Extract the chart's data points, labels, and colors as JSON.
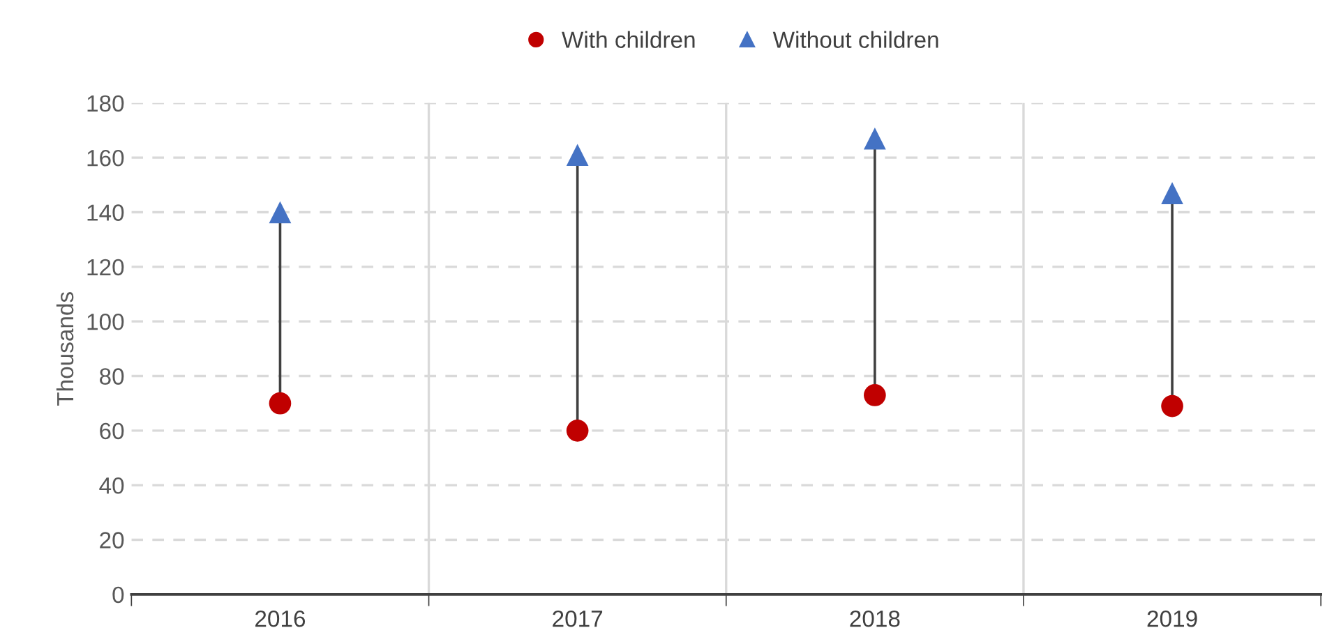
{
  "chart_data": {
    "type": "scatter",
    "ylabel": "Thousands",
    "categories": [
      "2016",
      "2017",
      "2018",
      "2019"
    ],
    "series": [
      {
        "name": "With children",
        "color": "#c00000",
        "marker": "circle",
        "values": [
          70,
          60,
          73,
          69
        ]
      },
      {
        "name": "Without children",
        "color": "#4472c4",
        "marker": "triangle",
        "values": [
          140,
          161,
          167,
          147
        ]
      }
    ],
    "ylim": [
      0,
      180
    ],
    "yticks": [
      0,
      20,
      40,
      60,
      80,
      100,
      120,
      140,
      160,
      180
    ],
    "grid": "y",
    "legend": "top"
  }
}
